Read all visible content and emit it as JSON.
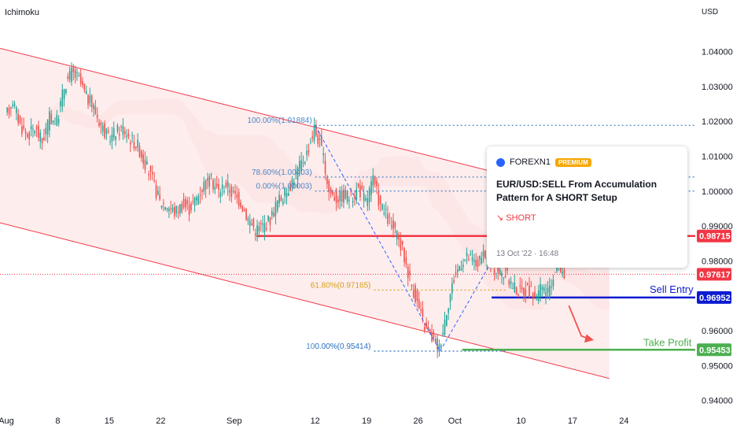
{
  "indicator_label": "Ichimoku",
  "currency_label": "USD",
  "colors": {
    "bull": "#26a69a",
    "bear": "#ef5350",
    "channel": "#f23645",
    "fib": "#2962ff",
    "fib_label": "#4a86c8",
    "golden": "#d4a017",
    "resistance": "#f23645",
    "entry": "#0d1bd1",
    "target": "#4caf50",
    "last_price": "#f23645"
  },
  "chart_data": {
    "type": "candlestick",
    "title": "",
    "ylim": [
      0.937,
      1.048
    ],
    "yticks": [
      {
        "label": "1.04000",
        "value": 1.04
      },
      {
        "label": "1.03000",
        "value": 1.03
      },
      {
        "label": "1.02000",
        "value": 1.02
      },
      {
        "label": "1.01000",
        "value": 1.01
      },
      {
        "label": "1.00000",
        "value": 1.0
      },
      {
        "label": "0.99000",
        "value": 0.99
      },
      {
        "label": "0.98000",
        "value": 0.98
      },
      {
        "label": "0.96000",
        "value": 0.96
      },
      {
        "label": "0.95000",
        "value": 0.95
      },
      {
        "label": "0.94000",
        "value": 0.94
      }
    ],
    "xticks": [
      {
        "label": "Aug",
        "day": 0
      },
      {
        "label": "8",
        "day": 7
      },
      {
        "label": "15",
        "day": 14
      },
      {
        "label": "22",
        "day": 21
      },
      {
        "label": "Sep",
        "day": 31
      },
      {
        "label": "12",
        "day": 42
      },
      {
        "label": "19",
        "day": 49
      },
      {
        "label": "26",
        "day": 56
      },
      {
        "label": "Oct",
        "day": 61
      },
      {
        "label": "10",
        "day": 70
      },
      {
        "label": "17",
        "day": 77
      },
      {
        "label": "24",
        "day": 84
      }
    ],
    "price_path": [
      {
        "day": 0,
        "price": 1.021
      },
      {
        "day": 1,
        "price": 1.026
      },
      {
        "day": 2,
        "price": 1.019
      },
      {
        "day": 3,
        "price": 1.016
      },
      {
        "day": 4,
        "price": 1.018
      },
      {
        "day": 5,
        "price": 1.014
      },
      {
        "day": 6,
        "price": 1.021
      },
      {
        "day": 7,
        "price": 1.02
      },
      {
        "day": 8,
        "price": 1.03
      },
      {
        "day": 9,
        "price": 1.034
      },
      {
        "day": 10,
        "price": 1.032
      },
      {
        "day": 11,
        "price": 1.027
      },
      {
        "day": 12,
        "price": 1.024
      },
      {
        "day": 13,
        "price": 1.019
      },
      {
        "day": 14,
        "price": 1.015
      },
      {
        "day": 15,
        "price": 1.017
      },
      {
        "day": 16,
        "price": 1.018
      },
      {
        "day": 17,
        "price": 1.015
      },
      {
        "day": 18,
        "price": 1.013
      },
      {
        "day": 19,
        "price": 1.008
      },
      {
        "day": 20,
        "price": 1.003
      },
      {
        "day": 21,
        "price": 0.997
      },
      {
        "day": 22,
        "price": 0.996
      },
      {
        "day": 23,
        "price": 0.994
      },
      {
        "day": 24,
        "price": 0.996
      },
      {
        "day": 25,
        "price": 0.995
      },
      {
        "day": 26,
        "price": 0.998
      },
      {
        "day": 27,
        "price": 1.002
      },
      {
        "day": 28,
        "price": 1.003
      },
      {
        "day": 29,
        "price": 1.0
      },
      {
        "day": 30,
        "price": 1.002
      },
      {
        "day": 31,
        "price": 0.999
      },
      {
        "day": 32,
        "price": 0.997
      },
      {
        "day": 33,
        "price": 0.992
      },
      {
        "day": 34,
        "price": 0.989
      },
      {
        "day": 35,
        "price": 0.99
      },
      {
        "day": 36,
        "price": 0.992
      },
      {
        "day": 37,
        "price": 0.997
      },
      {
        "day": 38,
        "price": 0.999
      },
      {
        "day": 39,
        "price": 1.003
      },
      {
        "day": 40,
        "price": 1.007
      },
      {
        "day": 41,
        "price": 1.011
      },
      {
        "day": 42,
        "price": 1.018
      },
      {
        "day": 43,
        "price": 1.012
      },
      {
        "day": 44,
        "price": 1.0
      },
      {
        "day": 45,
        "price": 0.998
      },
      {
        "day": 46,
        "price": 0.999
      },
      {
        "day": 47,
        "price": 0.998
      },
      {
        "day": 48,
        "price": 1.001
      },
      {
        "day": 49,
        "price": 0.997
      },
      {
        "day": 50,
        "price": 1.003
      },
      {
        "day": 51,
        "price": 0.996
      },
      {
        "day": 52,
        "price": 0.992
      },
      {
        "day": 53,
        "price": 0.988
      },
      {
        "day": 54,
        "price": 0.983
      },
      {
        "day": 55,
        "price": 0.975
      },
      {
        "day": 56,
        "price": 0.968
      },
      {
        "day": 57,
        "price": 0.961
      },
      {
        "day": 58,
        "price": 0.958
      },
      {
        "day": 59,
        "price": 0.955
      },
      {
        "day": 60,
        "price": 0.966
      },
      {
        "day": 61,
        "price": 0.975
      },
      {
        "day": 62,
        "price": 0.98
      },
      {
        "day": 63,
        "price": 0.981
      },
      {
        "day": 64,
        "price": 0.979
      },
      {
        "day": 65,
        "price": 0.981
      },
      {
        "day": 66,
        "price": 0.979
      },
      {
        "day": 67,
        "price": 0.977
      },
      {
        "day": 68,
        "price": 0.976
      },
      {
        "day": 69,
        "price": 0.973
      },
      {
        "day": 70,
        "price": 0.971
      },
      {
        "day": 71,
        "price": 0.972
      },
      {
        "day": 72,
        "price": 0.97
      },
      {
        "day": 73,
        "price": 0.972
      },
      {
        "day": 74,
        "price": 0.971
      },
      {
        "day": 75,
        "price": 0.98
      },
      {
        "day": 76,
        "price": 0.9762
      }
    ],
    "channel": {
      "upper": [
        {
          "day": -1,
          "price": 1.041
        },
        {
          "day": 90,
          "price": 0.993
        }
      ],
      "lower": [
        {
          "day": -1,
          "price": 0.991
        },
        {
          "day": 90,
          "price": 0.942
        }
      ]
    },
    "fib_upper": {
      "start_day": 42,
      "end_day": 66,
      "levels": [
        {
          "label": "100.00%(1.01884)",
          "value": 1.01884
        },
        {
          "label": "78.60%(1.00403)",
          "value": 1.00403
        },
        {
          "label": "0.00%(1.00003)",
          "value": 1.00003
        }
      ]
    },
    "fib_lower": {
      "start_day": 50,
      "end_day": 68,
      "levels": [
        {
          "label": "61.80%(0.97165)",
          "value": 0.97165
        },
        {
          "label": "0.00%(0.95414)",
          "value": 0.95414
        },
        {
          "label": "100.00%(0.95414)",
          "value": 0.95414
        }
      ]
    },
    "levels": {
      "resistance": 0.98715,
      "sell_entry": 0.96952,
      "take_profit": 0.95453,
      "last_price": 0.97617
    },
    "annotations": {
      "sell_entry": "Sell Entry",
      "take_profit": "Take Profit"
    },
    "price_tags": [
      {
        "label": "0.98715",
        "value": 0.98715,
        "color": "#f23645"
      },
      {
        "label": "0.97617",
        "value": 0.97617,
        "color": "#f23645"
      },
      {
        "label": "0.96952",
        "value": 0.96952,
        "color": "#0d1bd1"
      },
      {
        "label": "0.95453",
        "value": 0.95453,
        "color": "#4caf50"
      }
    ]
  },
  "idea_card": {
    "author": "FOREXN1",
    "badge": "PREMIUM",
    "title": "EUR/USD:SELL From Accumulation Pattern for A SHORT Setup",
    "direction": "↘ SHORT",
    "timestamp": "13 Oct '22 · 16:48"
  }
}
